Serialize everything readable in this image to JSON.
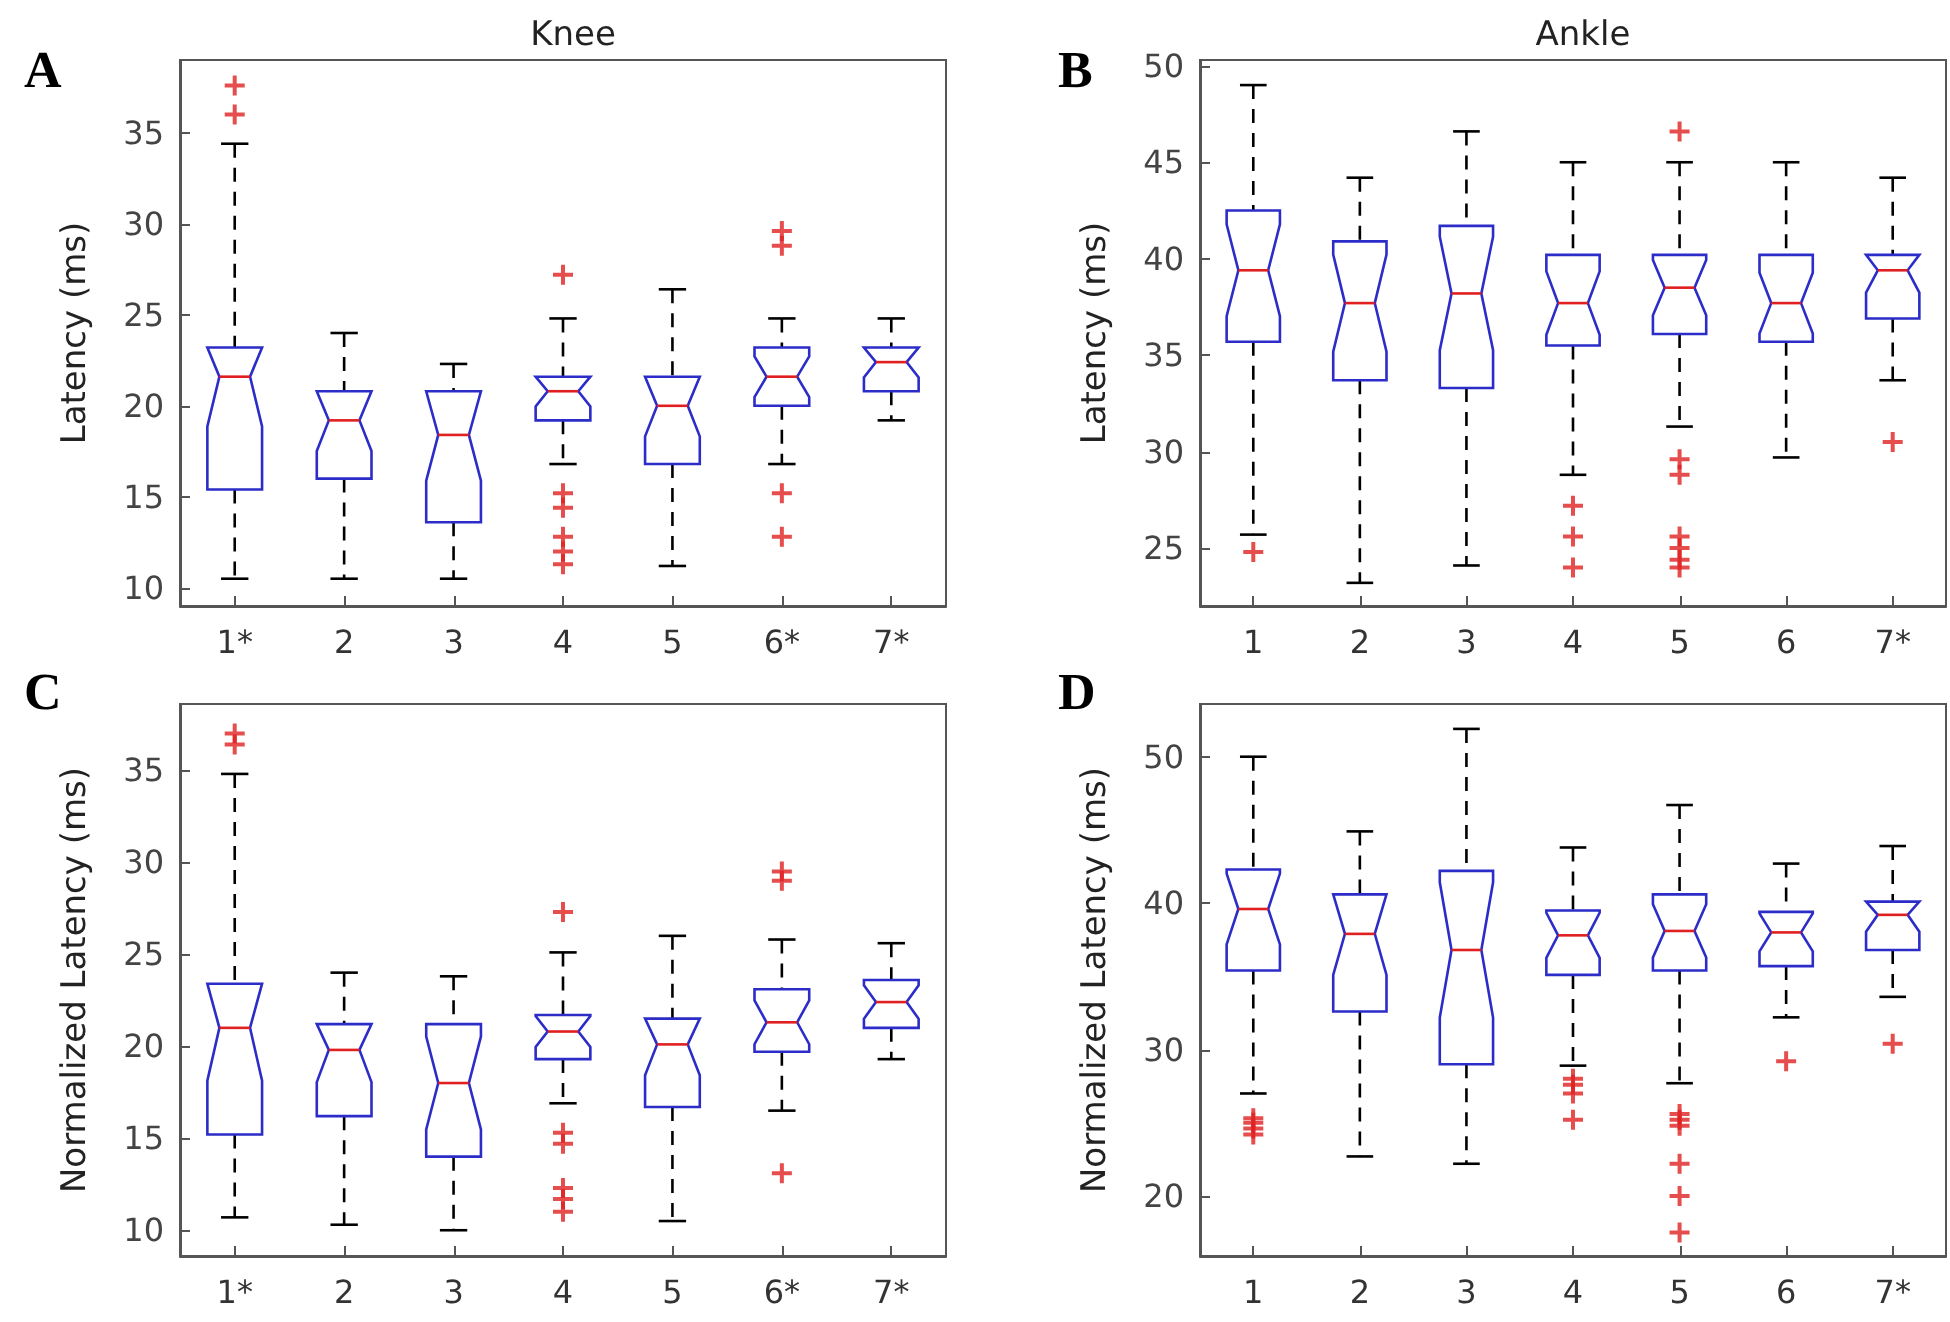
{
  "chart_data": [
    {
      "type": "box",
      "title": "Knee",
      "ylabel": "Latency (ms)",
      "annotations": [
        "A"
      ],
      "categories": [
        "1*",
        "2",
        "3",
        "4",
        "5",
        "6*",
        "7*"
      ],
      "ylim": [
        9,
        39
      ],
      "yticks": [
        10,
        15,
        20,
        25,
        30,
        35
      ],
      "grid": false,
      "marker": "cross",
      "line_style": "dashed",
      "series": [
        {
          "color": "#2c2cc8",
          "boxes": [
            {
              "low": 10.5,
              "q1": 15.4,
              "median": 21.6,
              "q3": 23.2,
              "high": 34.4,
              "outliers": [
                36,
                37.6
              ]
            },
            {
              "low": 10.5,
              "q1": 16.0,
              "median": 19.2,
              "q3": 20.8,
              "high": 24.0
            },
            {
              "low": 10.5,
              "q1": 13.6,
              "median": 18.4,
              "q3": 20.8,
              "high": 22.3
            },
            {
              "low": 16.8,
              "q1": 19.2,
              "median": 20.8,
              "q3": 21.6,
              "high": 24.8,
              "outliers": [
                27.2,
                15.2,
                14.4,
                12.8,
                12.0,
                11.3
              ]
            },
            {
              "low": 11.2,
              "q1": 16.8,
              "median": 20.0,
              "q3": 21.6,
              "high": 26.4
            },
            {
              "low": 16.8,
              "q1": 20.0,
              "median": 21.6,
              "q3": 23.2,
              "high": 24.8,
              "outliers": [
                29.6,
                28.8,
                15.2,
                12.8
              ]
            },
            {
              "low": 19.2,
              "q1": 20.8,
              "median": 22.4,
              "q3": 23.2,
              "high": 24.8
            }
          ]
        }
      ]
    },
    {
      "type": "box",
      "title": "Ankle",
      "ylabel": "Latency (ms)",
      "annotations": [
        "B"
      ],
      "categories": [
        "1",
        "2",
        "3",
        "4",
        "5",
        "6",
        "7*"
      ],
      "ylim": [
        22,
        50.3
      ],
      "yticks": [
        25,
        30,
        35,
        40,
        45,
        50
      ],
      "grid": false,
      "marker": "cross",
      "line_style": "dashed",
      "series": [
        {
          "color": "#2c2cc8",
          "boxes": [
            {
              "low": 25.7,
              "q1": 35.7,
              "median": 39.4,
              "q3": 42.5,
              "high": 49.0,
              "outliers": [
                24.8
              ]
            },
            {
              "low": 23.2,
              "q1": 33.7,
              "median": 37.7,
              "q3": 40.9,
              "high": 44.2
            },
            {
              "low": 24.1,
              "q1": 33.3,
              "median": 38.2,
              "q3": 41.7,
              "high": 46.6
            },
            {
              "low": 28.8,
              "q1": 35.5,
              "median": 37.7,
              "q3": 40.2,
              "high": 45.0,
              "outliers": [
                27.2,
                25.6,
                24.0
              ]
            },
            {
              "low": 31.3,
              "q1": 36.1,
              "median": 38.5,
              "q3": 40.2,
              "high": 45.0,
              "outliers": [
                46.6,
                29.6,
                28.8,
                25.6,
                25.0,
                24.4,
                24.0
              ]
            },
            {
              "low": 29.7,
              "q1": 35.7,
              "median": 37.7,
              "q3": 40.2,
              "high": 45.0
            },
            {
              "low": 33.7,
              "q1": 36.9,
              "median": 39.4,
              "q3": 40.2,
              "high": 44.2,
              "outliers": [
                30.5
              ]
            }
          ]
        }
      ]
    },
    {
      "type": "box",
      "ylabel": "Normalized Latency (ms)",
      "annotations": [
        "C"
      ],
      "categories": [
        "1*",
        "2",
        "3",
        "4",
        "5",
        "6*",
        "7*"
      ],
      "ylim": [
        8.6,
        38.6
      ],
      "yticks": [
        10,
        15,
        20,
        25,
        30,
        35
      ],
      "grid": false,
      "marker": "cross",
      "line_style": "dashed",
      "series": [
        {
          "color": "#2c2cc8",
          "boxes": [
            {
              "low": 10.7,
              "q1": 15.2,
              "median": 21.0,
              "q3": 23.4,
              "high": 34.8,
              "outliers": [
                37.0,
                36.4
              ]
            },
            {
              "low": 10.3,
              "q1": 16.2,
              "median": 19.8,
              "q3": 21.2,
              "high": 24.0
            },
            {
              "low": 10.0,
              "q1": 14.0,
              "median": 18.0,
              "q3": 21.2,
              "high": 23.8
            },
            {
              "low": 16.9,
              "q1": 19.3,
              "median": 20.8,
              "q3": 21.7,
              "high": 25.1,
              "outliers": [
                27.3,
                15.3,
                14.7,
                12.3,
                11.7,
                11.0
              ]
            },
            {
              "low": 10.5,
              "q1": 16.7,
              "median": 20.1,
              "q3": 21.5,
              "high": 26.0
            },
            {
              "low": 16.5,
              "q1": 19.7,
              "median": 21.3,
              "q3": 23.1,
              "high": 25.8,
              "outliers": [
                29.5,
                29.0,
                13.1
              ]
            },
            {
              "low": 19.3,
              "q1": 21.0,
              "median": 22.4,
              "q3": 23.6,
              "high": 25.6
            }
          ]
        }
      ]
    },
    {
      "type": "box",
      "ylabel": "Normalized Latency (ms)",
      "annotations": [
        "D"
      ],
      "categories": [
        "1",
        "2",
        "3",
        "4",
        "5",
        "6",
        "7*"
      ],
      "ylim": [
        15.9,
        53.6
      ],
      "yticks": [
        20,
        30,
        40,
        50
      ],
      "grid": false,
      "marker": "cross",
      "line_style": "dashed",
      "series": [
        {
          "color": "#2c2cc8",
          "boxes": [
            {
              "low": 27.0,
              "q1": 35.4,
              "median": 39.6,
              "q3": 42.3,
              "high": 50.0,
              "outliers": [
                25.3,
                25.0,
                24.6,
                24.2
              ]
            },
            {
              "low": 22.7,
              "q1": 32.6,
              "median": 37.9,
              "q3": 40.6,
              "high": 44.9
            },
            {
              "low": 22.2,
              "q1": 29.0,
              "median": 36.8,
              "q3": 42.2,
              "high": 51.9
            },
            {
              "low": 28.9,
              "q1": 35.1,
              "median": 37.8,
              "q3": 39.5,
              "high": 43.8,
              "outliers": [
                28.0,
                27.6,
                27.0,
                25.2
              ]
            },
            {
              "low": 27.7,
              "q1": 35.4,
              "median": 38.1,
              "q3": 40.6,
              "high": 46.7,
              "outliers": [
                25.6,
                25.2,
                24.8,
                22.2,
                20.0,
                17.5
              ]
            },
            {
              "low": 32.2,
              "q1": 35.7,
              "median": 38.0,
              "q3": 39.4,
              "high": 42.7,
              "outliers": [
                29.2
              ]
            },
            {
              "low": 33.6,
              "q1": 36.8,
              "median": 39.2,
              "q3": 40.1,
              "high": 43.9,
              "outliers": [
                30.4
              ]
            }
          ]
        }
      ]
    }
  ]
}
